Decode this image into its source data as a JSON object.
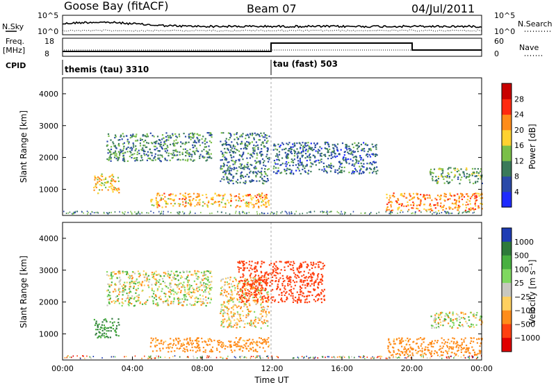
{
  "header": {
    "station": "Goose Bay (fitACF)",
    "beam": "Beam 07",
    "date": "04/Jul/2011"
  },
  "top_panel": {
    "left_labels": {
      "sky_label": "N.Sky",
      "freq_label": "Freq.",
      "freq_unit": "[MHz]",
      "cpid_label": "CPID"
    },
    "right_labels": {
      "search_label": "N.Search",
      "nave_label": "Nave"
    },
    "noise_ticks": [
      "10^5",
      "10^0"
    ],
    "freq_ticks": [
      "18",
      "8"
    ],
    "nave_ticks": [
      "60",
      "0"
    ],
    "cpid_segments": [
      {
        "label": "themis (tau) 3310"
      },
      {
        "label": "tau (fast) 503"
      }
    ]
  },
  "chart_data": [
    {
      "type": "heatmap",
      "name": "power",
      "ylabel": "Slant Range [km]",
      "xlabel": "",
      "ylim": [
        180,
        4500
      ],
      "yticks": [
        1000,
        2000,
        3000,
        4000
      ],
      "xlim_hours": [
        0,
        24
      ],
      "colorbar": {
        "label": "Power [dB]",
        "ticks": [
          "4",
          "8",
          "12",
          "16",
          "20",
          "24",
          "28"
        ],
        "colors": [
          "#1f2bff",
          "#2b4aa8",
          "#3a7a5a",
          "#7abf48",
          "#ffd230",
          "#ff8c1a",
          "#ff2a10",
          "#c80000"
        ]
      },
      "echo_regions": [
        {
          "t0": 1.7,
          "t1": 3.2,
          "r0": 900,
          "r1": 1500,
          "level": 18
        },
        {
          "t0": 2.5,
          "t1": 8.5,
          "r0": 1900,
          "r1": 2800,
          "level": 10
        },
        {
          "t0": 5.0,
          "t1": 11.8,
          "r0": 450,
          "r1": 900,
          "level": 20
        },
        {
          "t0": 9.0,
          "t1": 11.8,
          "r0": 1200,
          "r1": 2800,
          "level": 9
        },
        {
          "t0": 18.5,
          "t1": 24.0,
          "r0": 350,
          "r1": 900,
          "level": 22
        },
        {
          "t0": 21.0,
          "t1": 24.0,
          "r0": 1200,
          "r1": 1700,
          "level": 12
        },
        {
          "t0": 12.0,
          "t1": 18.0,
          "r0": 1500,
          "r1": 2500,
          "level": 8
        }
      ]
    },
    {
      "type": "heatmap",
      "name": "velocity",
      "ylabel": "Slant Range [km]",
      "xlabel": "Time UT",
      "ylim": [
        180,
        4500
      ],
      "yticks": [
        1000,
        2000,
        3000,
        4000
      ],
      "xlim_hours": [
        0,
        24
      ],
      "xticks": [
        "00:00",
        "04:00",
        "08:00",
        "12:00",
        "16:00",
        "20:00",
        "00:00"
      ],
      "colorbar": {
        "label": "Velocity [m s⁻¹]",
        "ticks": [
          "1000",
          "500",
          "100",
          "25",
          "−25",
          "−100",
          "−500",
          "−1000"
        ],
        "colors": [
          "#1e3cb4",
          "#2e7a3a",
          "#48b040",
          "#7fd860",
          "#c8c8c0",
          "#ffd060",
          "#ff8c1a",
          "#ff4010",
          "#e00000"
        ]
      },
      "echo_regions": [
        {
          "t0": 1.7,
          "t1": 3.2,
          "r0": 900,
          "r1": 1500,
          "v": 300
        },
        {
          "t0": 2.5,
          "t1": 8.5,
          "r0": 1900,
          "r1": 3000,
          "v": 0
        },
        {
          "t0": 5.0,
          "t1": 11.8,
          "r0": 450,
          "r1": 900,
          "v": -150
        },
        {
          "t0": 9.0,
          "t1": 11.8,
          "r0": 1200,
          "r1": 2800,
          "v": -50
        },
        {
          "t0": 10.0,
          "t1": 15.0,
          "r0": 2000,
          "r1": 3300,
          "v": -400
        },
        {
          "t0": 18.5,
          "t1": 24.0,
          "r0": 350,
          "r1": 900,
          "v": -150
        },
        {
          "t0": 21.0,
          "t1": 24.0,
          "r0": 1200,
          "r1": 1700,
          "v": 0
        }
      ]
    }
  ]
}
